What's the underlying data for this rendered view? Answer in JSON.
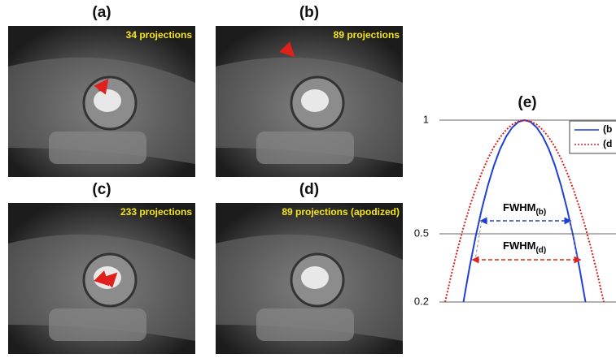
{
  "panels": [
    {
      "label": "(a)",
      "caption": "34 projections"
    },
    {
      "label": "(b)",
      "caption": "89 projections"
    },
    {
      "label": "(c)",
      "caption": "233 projections"
    },
    {
      "label": "(d)",
      "caption": "89 projections (apodized)"
    }
  ],
  "chart_data": {
    "type": "line",
    "title": "(e)",
    "x": [
      -1.3,
      -1.2,
      -1.1,
      -1.0,
      -0.9,
      -0.8,
      -0.7,
      -0.6,
      -0.5,
      -0.4,
      -0.3,
      -0.2,
      -0.1,
      0,
      0.1,
      0.2,
      0.3,
      0.4,
      0.5,
      0.6,
      0.7,
      0.8,
      0.9,
      1.0,
      1.1,
      1.2,
      1.3
    ],
    "series": [
      {
        "name": "(b",
        "color": "#1f3fd6",
        "style": "solid",
        "values": [
          null,
          null,
          null,
          0.2,
          0.352,
          0.488,
          0.608,
          0.712,
          0.8,
          0.872,
          0.928,
          0.968,
          0.992,
          1,
          0.992,
          0.968,
          0.928,
          0.872,
          0.8,
          0.712,
          0.608,
          0.488,
          0.352,
          0.2,
          null,
          null,
          null
        ]
      },
      {
        "name": "(d",
        "color": "#e0201b",
        "style": "dotted",
        "values": [
          0.2,
          0.318,
          0.427,
          0.527,
          0.617,
          0.697,
          0.768,
          0.83,
          0.882,
          0.924,
          0.957,
          0.981,
          0.995,
          1,
          0.995,
          0.981,
          0.957,
          0.924,
          0.882,
          0.83,
          0.768,
          0.697,
          0.617,
          0.527,
          0.427,
          0.318,
          0.2
        ]
      }
    ],
    "xlim": [
      -1.5,
      1.5
    ],
    "ylim": [
      0.2,
      1
    ],
    "yticks": [
      0.2,
      0.5,
      1
    ],
    "grid": true,
    "annotations": [
      {
        "text": "FWHM",
        "sub": "(b)"
      },
      {
        "text": "FWHM",
        "sub": "(d)"
      }
    ]
  }
}
